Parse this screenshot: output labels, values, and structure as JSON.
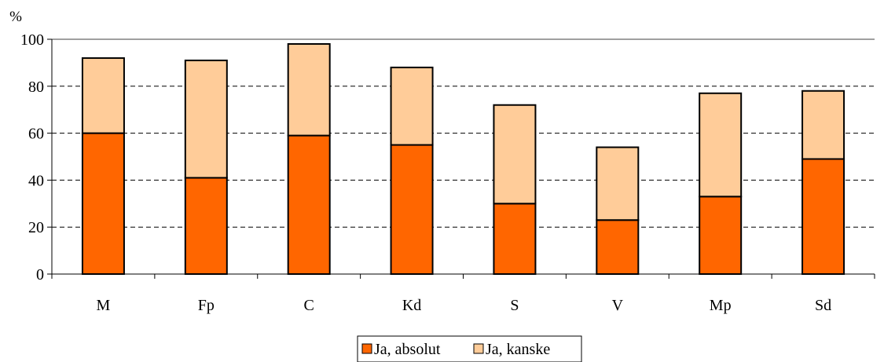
{
  "chart_data": {
    "type": "bar",
    "stacked": true,
    "categories": [
      "M",
      "Fp",
      "C",
      "Kd",
      "S",
      "V",
      "Mp",
      "Sd"
    ],
    "series": [
      {
        "name": "Ja, absolut",
        "values": [
          60,
          41,
          59,
          55,
          30,
          23,
          33,
          49
        ],
        "color": "#ff6600"
      },
      {
        "name": "Ja, kanske",
        "values": [
          32,
          50,
          39,
          33,
          42,
          31,
          44,
          29
        ],
        "color": "#ffcc99"
      }
    ],
    "ylabel": "%",
    "ylim": [
      0,
      100
    ],
    "yticks": [
      0,
      20,
      40,
      60,
      80,
      100
    ],
    "grid": "horizontal-dashed",
    "legend_position": "bottom-center"
  }
}
